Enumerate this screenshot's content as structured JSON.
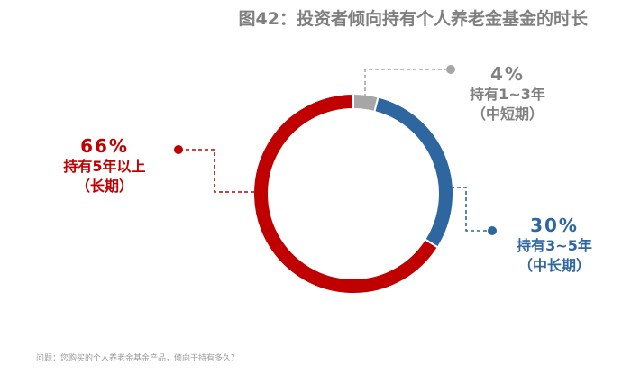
{
  "title": "图42：投资者倾向持有个人养老金基金的时长",
  "footnote": "问题：您购买的个人养老金基金产品，倾向于持有多久？",
  "chart_data": {
    "type": "pie",
    "variant": "donut",
    "title": "图42：投资者倾向持有个人养老金基金的时长",
    "slices": [
      {
        "label": "持有1~3年（中短期）",
        "value": 4,
        "pct_text": "4%",
        "line1": "持有1~3年",
        "line2": "（中短期）",
        "color": "#a6a6a6"
      },
      {
        "label": "持有3~5年（中长期）",
        "value": 30,
        "pct_text": "30%",
        "line1": "持有3~5年",
        "line2": "（中长期）",
        "color": "#2e66a0"
      },
      {
        "label": "持有5年以上（长期）",
        "value": 66,
        "pct_text": "66%",
        "line1": "持有5年以上",
        "line2": "（长期）",
        "color": "#c00000"
      }
    ]
  }
}
